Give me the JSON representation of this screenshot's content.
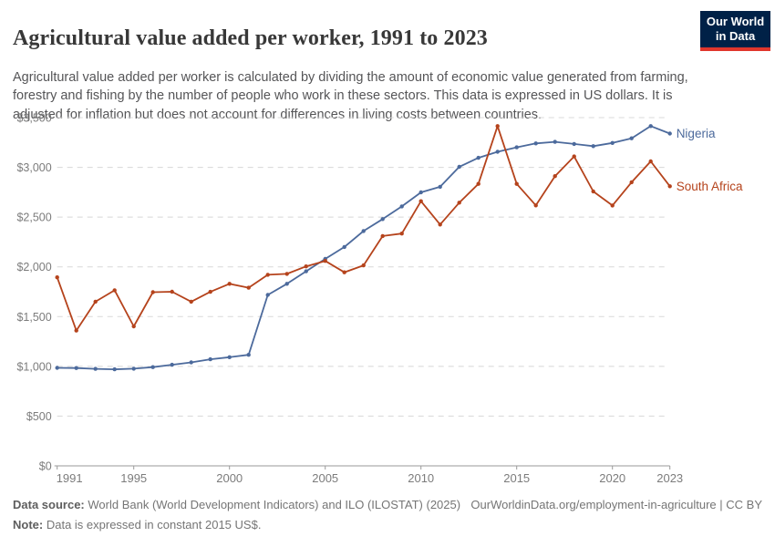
{
  "header": {
    "title": "Agricultural value added per worker, 1991 to 2023",
    "subtitle": "Agricultural value added per worker is calculated by dividing the amount of economic value generated from farming, forestry and fishing by the number of people who work in these sectors. This data is expressed in US dollars. It is adjusted for inflation but does not account for differences in living costs between countries.",
    "logo": {
      "line1": "Our World",
      "line2": "in Data",
      "bg_color": "#002147",
      "bar_color": "#e0362c"
    }
  },
  "chart_data": {
    "type": "line",
    "x": [
      1991,
      1992,
      1993,
      1994,
      1995,
      1996,
      1997,
      1998,
      1999,
      2000,
      2001,
      2002,
      2003,
      2004,
      2005,
      2006,
      2007,
      2008,
      2009,
      2010,
      2011,
      2012,
      2013,
      2014,
      2015,
      2016,
      2017,
      2018,
      2019,
      2020,
      2021,
      2022,
      2023
    ],
    "series": [
      {
        "name": "Nigeria",
        "color": "#4C6A9C",
        "values": [
          985,
          983,
          975,
          970,
          977,
          992,
          1016,
          1040,
          1071,
          1092,
          1116,
          1718,
          1830,
          1955,
          2080,
          2200,
          2360,
          2480,
          2608,
          2749,
          2805,
          3005,
          3096,
          3156,
          3201,
          3241,
          3256,
          3235,
          3213,
          3245,
          3292,
          3415,
          3340
        ]
      },
      {
        "name": "South Africa",
        "color": "#B5431C",
        "values": [
          1895,
          1360,
          1650,
          1765,
          1402,
          1745,
          1750,
          1650,
          1749,
          1830,
          1790,
          1920,
          1930,
          2005,
          2060,
          1945,
          2015,
          2310,
          2335,
          2660,
          2425,
          2645,
          2834,
          3415,
          2834,
          2618,
          2912,
          3110,
          2758,
          2617,
          2850,
          3060,
          2810
        ]
      }
    ],
    "title": "Agricultural value added per worker, 1991 to 2023",
    "xlabel": "",
    "ylabel": "",
    "ylim": [
      0,
      3500
    ],
    "yticks": [
      0,
      500,
      1000,
      1500,
      2000,
      2500,
      3000,
      3500
    ],
    "ytick_labels": [
      "$0",
      "$500",
      "$1,000",
      "$1,500",
      "$2,000",
      "$2,500",
      "$3,000",
      "$3,500"
    ],
    "xticks": [
      1991,
      1995,
      2000,
      2005,
      2010,
      2015,
      2020,
      2023
    ],
    "grid": "horizontal-dashed",
    "legend_position": "line-end-labels"
  },
  "footer": {
    "source_label": "Data source:",
    "source_text": "World Bank (World Development Indicators) and ILO (ILOSTAT) (2025)",
    "link_text": "OurWorldinData.org/employment-in-agriculture | CC BY",
    "note_label": "Note:",
    "note_text": "Data is expressed in constant 2015 US$."
  }
}
